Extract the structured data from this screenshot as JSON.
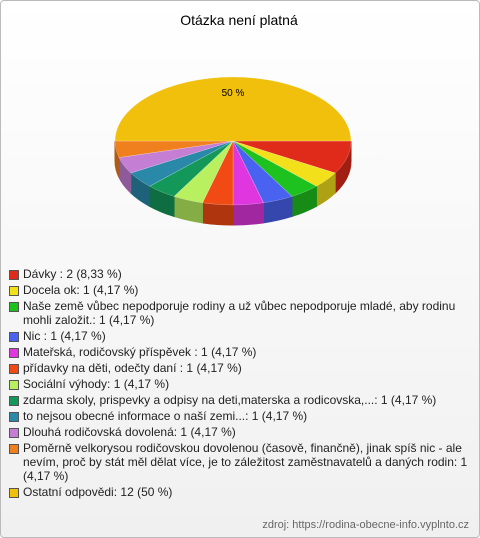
{
  "chart_data": {
    "type": "pie",
    "title": "Otázka není platná",
    "categories": [
      "Dávky : 2 (8,33 %)",
      "Docela ok: 1 (4,17 %)",
      "Naše země vůbec nepodporuje rodiny a už vůbec nepodporuje mladé, aby rodinu mohli založit.: 1 (4,17 %)",
      "Nic : 1 (4,17 %)",
      "Mateřská, rodičovský příspěvek : 1 (4,17 %)",
      "přídavky na děti, odečty daní : 1 (4,17 %)",
      "Sociální výhody: 1 (4,17 %)",
      "zdarma skoly, prispevky a odpisy na deti,materska a rodicovska,...: 1 (4,17 %)",
      "to nejsou obecné informace o naší zemi...: 1 (4,17 %)",
      "Dlouhá rodičovská dovolená: 1 (4,17 %)",
      "Poměrně velkorysou rodičovskou dovolenou (časově, finančně), jinak spíš nic - ale nevím, proč by stát měl dělat více, je to záležitost zaměstnavatelů a daných rodin: 1 (4,17 %)",
      "Ostatní odpovědi: 12 (50 %)"
    ],
    "values": [
      2,
      1,
      1,
      1,
      1,
      1,
      1,
      1,
      1,
      1,
      1,
      12
    ],
    "value_labels": [
      null,
      null,
      null,
      null,
      null,
      null,
      null,
      null,
      null,
      null,
      null,
      "50 %"
    ],
    "colors": [
      "#e02a1a",
      "#f2e01a",
      "#1ec21e",
      "#4a62f0",
      "#e036e0",
      "#f24a14",
      "#b8f060",
      "#14985a",
      "#2a88a8",
      "#c47ed4",
      "#f0801e",
      "#f0c00c"
    ],
    "source": "zdroj: https://rodina-obecne-info.vyplnto.cz"
  }
}
